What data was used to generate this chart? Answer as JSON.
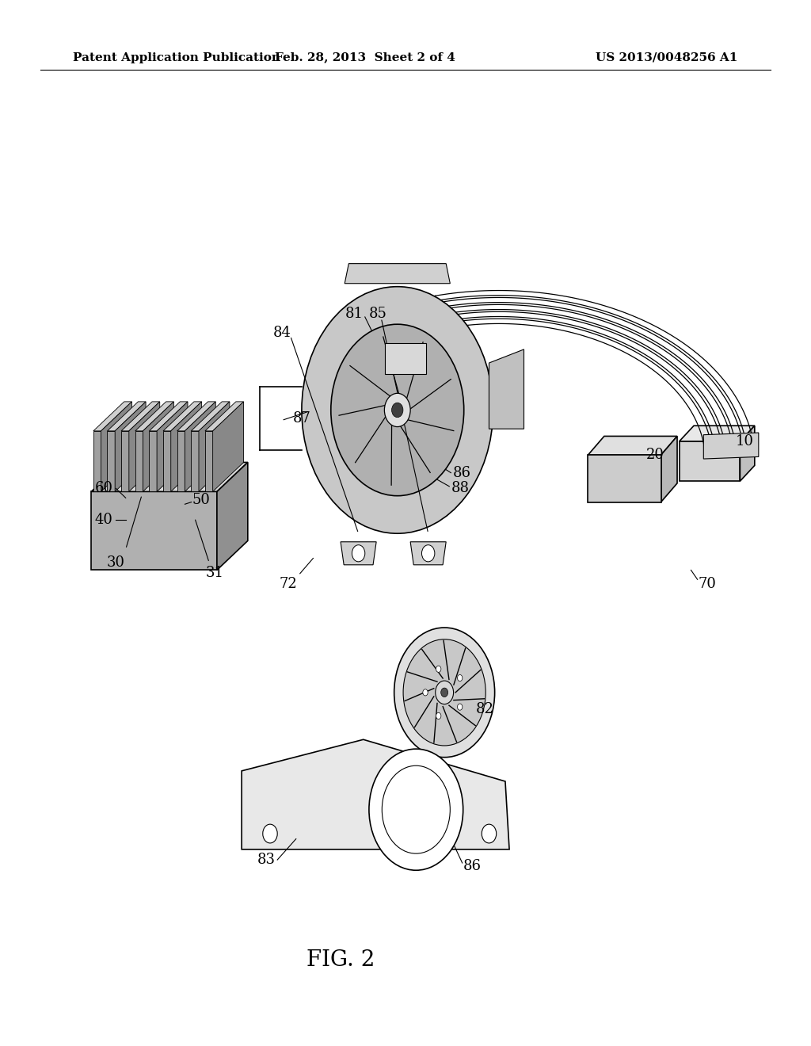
{
  "header_left": "Patent Application Publication",
  "header_center": "Feb. 28, 2013  Sheet 2 of 4",
  "header_right": "US 2013/0048256 A1",
  "figure_label": "FIG. 2",
  "bg_color": "#ffffff",
  "line_color": "#000000",
  "header_fontsize": 11,
  "figure_fontsize": 20,
  "label_fontsize": 13
}
